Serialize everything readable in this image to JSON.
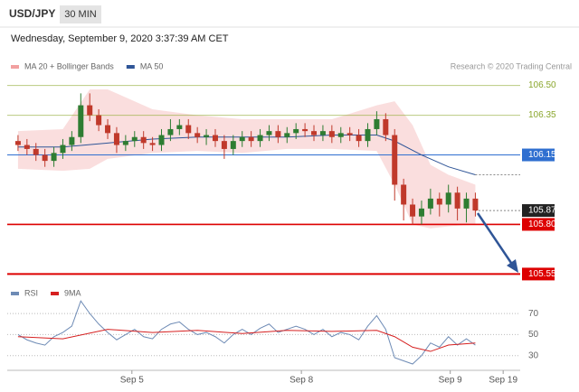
{
  "header": {
    "symbol": "USD/JPY",
    "interval": "30 MIN",
    "timestamp": "Wednesday, September 9, 2020 3:37:39 AM CET"
  },
  "chart_data": [
    {
      "type": "candlestick",
      "source": "Research © 2020 Trading Central",
      "xlim": [
        -1,
        56
      ],
      "ylim": [
        105.52,
        106.53
      ],
      "up_color": "#2e7d32",
      "down_color": "#c0392b",
      "x": [
        0,
        1,
        2,
        3,
        4,
        5,
        6,
        7,
        8,
        9,
        10,
        11,
        12,
        13,
        14,
        15,
        16,
        17,
        18,
        19,
        20,
        21,
        22,
        23,
        24,
        25,
        26,
        27,
        28,
        29,
        30,
        31,
        32,
        33,
        34,
        35,
        36,
        37,
        38,
        39,
        40,
        41,
        42,
        43,
        44,
        45,
        46,
        47,
        48,
        49,
        50,
        51
      ],
      "open": [
        106.22,
        106.2,
        106.18,
        106.15,
        106.12,
        106.16,
        106.2,
        106.24,
        106.4,
        106.35,
        106.3,
        106.26,
        106.2,
        106.22,
        106.24,
        106.21,
        106.2,
        106.25,
        106.28,
        106.3,
        106.26,
        106.24,
        106.25,
        106.22,
        106.18,
        106.22,
        106.24,
        106.22,
        106.25,
        106.27,
        106.24,
        106.26,
        106.28,
        106.27,
        106.25,
        106.27,
        106.24,
        106.26,
        106.25,
        106.22,
        106.28,
        106.33,
        106.25,
        106.0,
        105.9,
        105.84,
        105.88,
        105.93,
        105.9,
        105.96,
        105.88,
        105.93
      ],
      "high": [
        106.25,
        106.23,
        106.21,
        106.18,
        106.19,
        106.23,
        106.27,
        106.46,
        106.46,
        106.38,
        106.33,
        106.29,
        106.25,
        106.27,
        106.27,
        106.24,
        106.28,
        106.33,
        106.33,
        106.33,
        106.29,
        106.28,
        106.28,
        106.25,
        106.25,
        106.27,
        106.27,
        106.28,
        106.3,
        106.3,
        106.29,
        106.31,
        106.31,
        106.3,
        106.3,
        106.3,
        106.29,
        106.29,
        106.28,
        106.31,
        106.37,
        106.36,
        106.28,
        106.03,
        105.93,
        105.92,
        105.98,
        105.96,
        106.0,
        105.99,
        105.96,
        105.96
      ],
      "low": [
        106.17,
        106.15,
        106.12,
        106.09,
        106.09,
        106.13,
        106.17,
        106.21,
        106.32,
        106.27,
        106.23,
        106.16,
        106.17,
        106.19,
        106.18,
        106.17,
        106.17,
        106.22,
        106.25,
        106.23,
        106.21,
        106.2,
        106.19,
        106.13,
        106.15,
        106.19,
        106.19,
        106.19,
        106.22,
        106.21,
        106.21,
        106.23,
        106.24,
        106.22,
        106.22,
        106.21,
        106.21,
        106.22,
        106.19,
        106.19,
        106.25,
        106.22,
        105.92,
        105.82,
        105.8,
        105.8,
        105.85,
        105.84,
        105.86,
        105.82,
        105.81,
        105.84
      ],
      "close": [
        106.2,
        106.18,
        106.15,
        106.12,
        106.16,
        106.2,
        106.24,
        106.4,
        106.35,
        106.3,
        106.26,
        106.2,
        106.22,
        106.24,
        106.21,
        106.2,
        106.25,
        106.28,
        106.3,
        106.26,
        106.24,
        106.25,
        106.22,
        106.18,
        106.22,
        106.24,
        106.22,
        106.25,
        106.27,
        106.24,
        106.26,
        106.28,
        106.27,
        106.25,
        106.27,
        106.24,
        106.26,
        106.25,
        106.22,
        106.28,
        106.33,
        106.25,
        106.0,
        105.9,
        105.84,
        105.88,
        105.93,
        105.9,
        105.96,
        105.88,
        105.93,
        105.87
      ],
      "series": [
        {
          "name": "MA 20 + Bollinger Bands",
          "color": "#f2a0a0",
          "x": [
            0,
            5,
            8,
            10,
            15,
            20,
            25,
            30,
            35,
            40,
            42,
            44,
            46,
            48,
            51
          ],
          "upper": [
            106.27,
            106.28,
            106.48,
            106.48,
            106.38,
            106.35,
            106.33,
            106.33,
            106.33,
            106.4,
            106.42,
            106.3,
            106.1,
            106.05,
            106.0
          ],
          "lower": [
            106.08,
            106.07,
            106.08,
            106.13,
            106.16,
            106.17,
            106.16,
            106.18,
            106.18,
            106.17,
            106.0,
            105.8,
            105.78,
            105.79,
            105.8
          ]
        },
        {
          "name": "MA 50",
          "color": "#2f5597",
          "x": [
            0,
            5,
            10,
            15,
            20,
            25,
            30,
            35,
            40,
            42,
            45,
            48,
            51
          ],
          "values": [
            106.19,
            106.19,
            106.21,
            106.23,
            106.24,
            106.24,
            106.24,
            106.25,
            106.25,
            106.22,
            106.15,
            106.09,
            106.05
          ]
        }
      ],
      "levels": [
        {
          "value": 106.5,
          "label": "106.50",
          "color": "#8aa62c",
          "style": "solid",
          "label_style": "text"
        },
        {
          "value": 106.35,
          "label": "106.35",
          "color": "#8aa62c",
          "style": "solid",
          "label_style": "text"
        },
        {
          "value": 106.15,
          "label": "106.15",
          "color": "#2f6fd0",
          "style": "solid",
          "label_style": "box"
        },
        {
          "value": 105.87,
          "label": "105.87",
          "color": "#222222",
          "style": "dotted",
          "label_style": "box"
        },
        {
          "value": 105.8,
          "label": "105.80",
          "color": "#dd0000",
          "style": "solid",
          "label_style": "box"
        },
        {
          "value": 105.55,
          "label": "105.55",
          "color": "#dd0000",
          "style": "thick",
          "label_style": "box"
        }
      ]
    },
    {
      "type": "line",
      "xlim": [
        -1,
        56
      ],
      "ylim": [
        16,
        89
      ],
      "yticks": [
        30,
        50,
        70
      ],
      "grid": true,
      "xticks": [
        {
          "value": 12.7,
          "label": "Sep 5"
        },
        {
          "value": 31.6,
          "label": "Sep 8"
        },
        {
          "value": 48.2,
          "label": "Sep 9"
        },
        {
          "value": 54.1,
          "label": "Sep 19"
        }
      ],
      "series": [
        {
          "name": "RSI",
          "color": "#6e8bb5",
          "x": [
            0,
            1,
            2,
            3,
            4,
            5,
            6,
            7,
            8,
            9,
            10,
            11,
            12,
            13,
            14,
            15,
            16,
            17,
            18,
            19,
            20,
            21,
            22,
            23,
            24,
            25,
            26,
            27,
            28,
            29,
            30,
            31,
            32,
            33,
            34,
            35,
            36,
            37,
            38,
            39,
            40,
            41,
            42,
            43,
            44,
            45,
            46,
            47,
            48,
            49,
            50,
            51
          ],
          "values": [
            50,
            45,
            42,
            40,
            48,
            52,
            58,
            82,
            70,
            60,
            52,
            45,
            50,
            55,
            48,
            46,
            55,
            60,
            62,
            55,
            50,
            52,
            48,
            42,
            50,
            55,
            50,
            56,
            60,
            52,
            55,
            58,
            55,
            50,
            55,
            48,
            52,
            50,
            45,
            58,
            68,
            55,
            28,
            25,
            22,
            30,
            42,
            38,
            48,
            40,
            46,
            40
          ]
        },
        {
          "name": "9MA",
          "color": "#d62020",
          "x": [
            0,
            5,
            10,
            15,
            20,
            25,
            30,
            35,
            40,
            42,
            44,
            46,
            48,
            51
          ],
          "values": [
            48,
            46,
            55,
            52,
            54,
            51,
            54,
            53,
            54,
            48,
            38,
            34,
            40,
            42
          ]
        }
      ]
    }
  ]
}
